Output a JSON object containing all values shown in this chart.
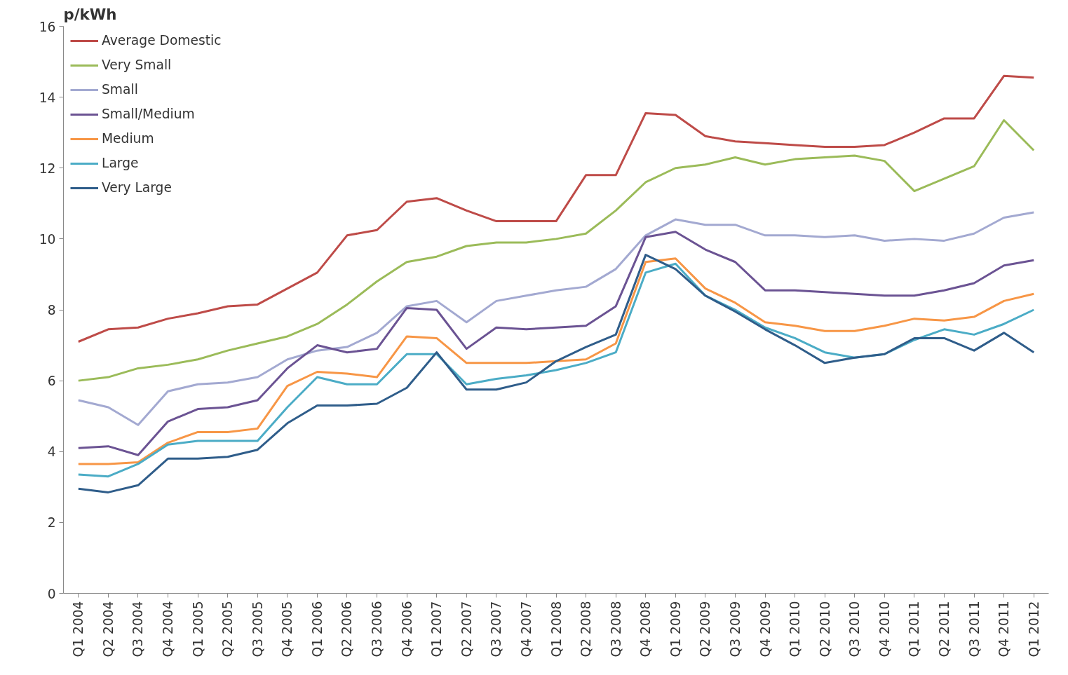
{
  "chart_data": {
    "type": "line",
    "ylabel": "p/kWh",
    "categories": [
      "Q1 2004",
      "Q2 2004",
      "Q3 2004",
      "Q4 2004",
      "Q1 2005",
      "Q2 2005",
      "Q3 2005",
      "Q4 2005",
      "Q1 2006",
      "Q2 2006",
      "Q3 2006",
      "Q4 2006",
      "Q1 2007",
      "Q2 2007",
      "Q3 2007",
      "Q4 2007",
      "Q1 2008",
      "Q2 2008",
      "Q3 2008",
      "Q4 2008",
      "Q1 2009",
      "Q2 2009",
      "Q3 2009",
      "Q4 2009",
      "Q1 2010",
      "Q2 2010",
      "Q3 2010",
      "Q4 2010",
      "Q1 2011",
      "Q2 2011",
      "Q3 2011",
      "Q4 2011",
      "Q1 2012"
    ],
    "series": [
      {
        "name": "Average Domestic",
        "color": "#be4b48",
        "values": [
          7.1,
          7.45,
          7.5,
          7.75,
          7.9,
          8.1,
          8.15,
          8.6,
          9.05,
          10.1,
          10.25,
          11.05,
          11.15,
          10.8,
          10.5,
          10.5,
          10.5,
          11.8,
          11.8,
          13.55,
          13.5,
          12.9,
          12.75,
          12.7,
          12.65,
          12.6,
          12.6,
          12.65,
          13.0,
          13.4,
          13.4,
          14.6,
          14.55
        ]
      },
      {
        "name": "Very Small",
        "color": "#9bbb59",
        "values": [
          6.0,
          6.1,
          6.35,
          6.45,
          6.6,
          6.85,
          7.05,
          7.25,
          7.6,
          8.15,
          8.8,
          9.35,
          9.5,
          9.8,
          9.9,
          9.9,
          10.0,
          10.15,
          10.8,
          11.6,
          12.0,
          12.1,
          12.3,
          12.1,
          12.25,
          12.3,
          12.35,
          12.2,
          11.35,
          11.7,
          12.05,
          13.35,
          12.5
        ]
      },
      {
        "name": "Small",
        "color": "#a3a9d1",
        "values": [
          5.45,
          5.25,
          4.75,
          5.7,
          5.9,
          5.95,
          6.1,
          6.6,
          6.85,
          6.95,
          7.35,
          8.1,
          8.25,
          7.65,
          8.25,
          8.4,
          8.55,
          8.65,
          9.15,
          10.1,
          10.55,
          10.4,
          10.4,
          10.1,
          10.1,
          10.05,
          10.1,
          9.95,
          10.0,
          9.95,
          10.15,
          10.6,
          10.75
        ]
      },
      {
        "name": "Small/Medium",
        "color": "#6b5393",
        "values": [
          4.1,
          4.15,
          3.9,
          4.85,
          5.2,
          5.25,
          5.45,
          6.35,
          7.0,
          6.8,
          6.9,
          8.05,
          8.0,
          6.9,
          7.5,
          7.45,
          7.5,
          7.55,
          8.1,
          10.05,
          10.2,
          9.7,
          9.35,
          8.55,
          8.55,
          8.5,
          8.45,
          8.4,
          8.4,
          8.55,
          8.75,
          9.25,
          9.4
        ]
      },
      {
        "name": "Medium",
        "color": "#f79646",
        "values": [
          3.65,
          3.65,
          3.7,
          4.25,
          4.55,
          4.55,
          4.65,
          5.85,
          6.25,
          6.2,
          6.1,
          7.25,
          7.2,
          6.5,
          6.5,
          6.5,
          6.55,
          6.6,
          7.05,
          9.35,
          9.45,
          8.6,
          8.2,
          7.65,
          7.55,
          7.4,
          7.4,
          7.55,
          7.75,
          7.7,
          7.8,
          8.25,
          8.45
        ]
      },
      {
        "name": "Large",
        "color": "#4bacc6",
        "values": [
          3.35,
          3.3,
          3.65,
          4.2,
          4.3,
          4.3,
          4.3,
          5.25,
          6.1,
          5.9,
          5.9,
          6.75,
          6.75,
          5.9,
          6.05,
          6.15,
          6.3,
          6.5,
          6.8,
          9.05,
          9.3,
          8.4,
          8.0,
          7.5,
          7.2,
          6.8,
          6.65,
          6.75,
          7.15,
          7.45,
          7.3,
          7.6,
          8.0
        ]
      },
      {
        "name": "Very Large",
        "color": "#2f5d8a",
        "values": [
          2.95,
          2.85,
          3.05,
          3.8,
          3.8,
          3.85,
          4.05,
          4.8,
          5.3,
          5.3,
          5.35,
          5.8,
          6.8,
          5.75,
          5.75,
          5.95,
          6.55,
          6.95,
          7.3,
          9.55,
          9.15,
          8.4,
          7.95,
          7.45,
          7.0,
          6.5,
          6.65,
          6.75,
          7.2,
          7.2,
          6.85,
          7.35,
          6.8
        ]
      }
    ],
    "ylim": [
      0,
      16
    ],
    "yticks": [
      0,
      2,
      4,
      6,
      8,
      10,
      12,
      14,
      16
    ],
    "grid": false,
    "legend": "top left",
    "marker": "none",
    "line_style": "solid"
  }
}
